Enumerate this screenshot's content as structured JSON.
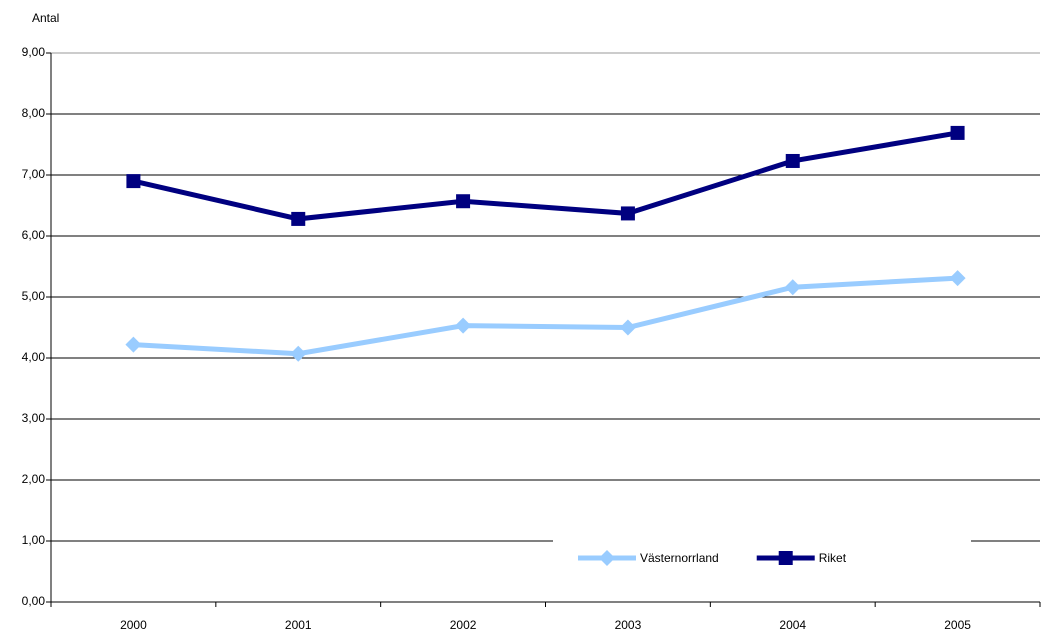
{
  "chart_data": {
    "type": "line",
    "y_label": "Antal",
    "categories": [
      "2000",
      "2001",
      "2002",
      "2003",
      "2004",
      "2005"
    ],
    "series": [
      {
        "name": "Västernorrland",
        "color": "#99ccff",
        "marker": "diamond",
        "values": [
          4.22,
          4.07,
          4.53,
          4.5,
          5.16,
          5.31
        ]
      },
      {
        "name": "Riket",
        "color": "#000080",
        "marker": "square",
        "values": [
          6.9,
          6.28,
          6.57,
          6.37,
          7.23,
          7.69
        ]
      }
    ],
    "ylim": [
      0,
      9
    ],
    "yticks": [
      {
        "value": 0,
        "label": "0,00"
      },
      {
        "value": 1,
        "label": "1,00"
      },
      {
        "value": 2,
        "label": "2,00"
      },
      {
        "value": 3,
        "label": "3,00"
      },
      {
        "value": 4,
        "label": "4,00"
      },
      {
        "value": 5,
        "label": "5,00"
      },
      {
        "value": 6,
        "label": "6,00"
      },
      {
        "value": 7,
        "label": "7,00"
      },
      {
        "value": 8,
        "label": "8,00"
      },
      {
        "value": 9,
        "label": "9,00"
      }
    ],
    "grid": true,
    "legend": "lower right"
  }
}
